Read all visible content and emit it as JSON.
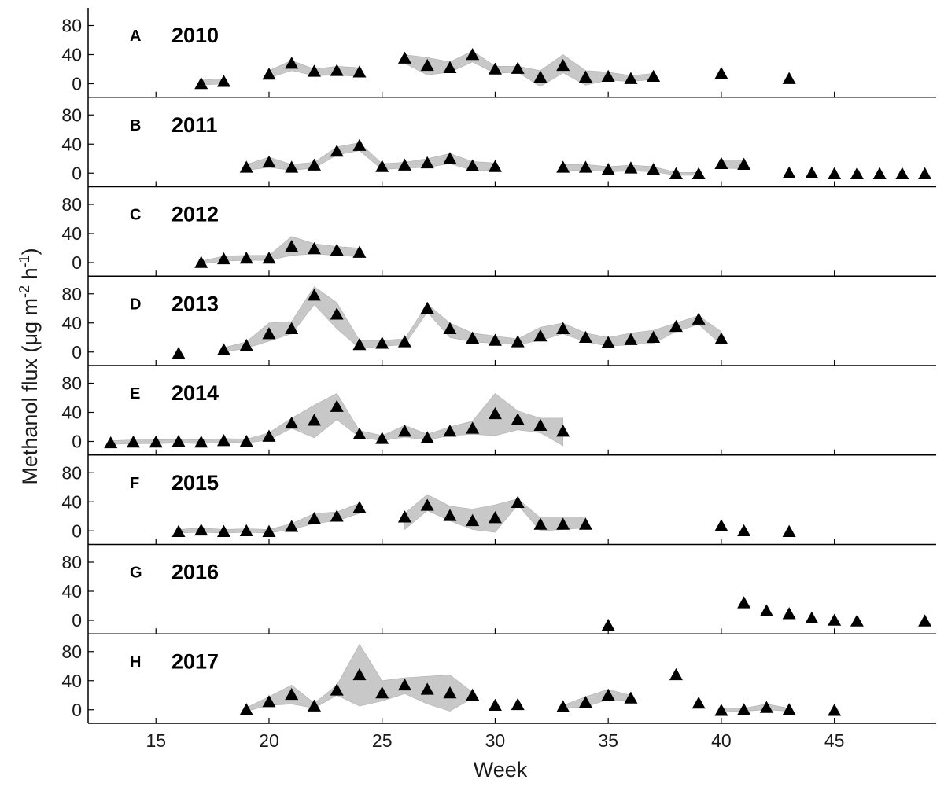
{
  "chart_data": {
    "type": "scatter",
    "xlabel": "Week",
    "ylabel": {
      "main": "Methanol flux (μg m",
      "sup1": "-2",
      "mid": " h",
      "sup2": "-1",
      "end": ")"
    },
    "xlim": [
      12,
      49.5
    ],
    "xticks": [
      15,
      20,
      25,
      30,
      35,
      40,
      45
    ],
    "ylim": [
      -10,
      100
    ],
    "yticks": [
      0,
      40,
      80
    ],
    "colors": {
      "marker": "#000000",
      "band": "#c8c8c8",
      "axis": "#000000"
    },
    "marker": "triangle-up",
    "panels": [
      {
        "letter": "A",
        "year": "2010",
        "x": [
          17,
          18,
          20,
          21,
          22,
          23,
          24,
          26,
          27,
          28,
          29,
          30,
          31,
          32,
          33,
          34,
          35,
          36,
          37,
          40,
          43
        ],
        "y": [
          0,
          3,
          13,
          28,
          17,
          18,
          16,
          35,
          25,
          22,
          40,
          20,
          21,
          9,
          25,
          9,
          10,
          7,
          10,
          14,
          7
        ],
        "segments": [
          {
            "x": [
              17,
              18
            ],
            "lo": [
              -2,
              0
            ],
            "hi": [
              5,
              7
            ]
          },
          {
            "x": [
              20,
              21,
              22,
              23,
              24
            ],
            "lo": [
              8,
              18,
              11,
              12,
              10
            ],
            "hi": [
              18,
              32,
              20,
              24,
              22
            ]
          },
          {
            "x": [
              26,
              27,
              28,
              29,
              30,
              31,
              32,
              33,
              34,
              35,
              36,
              37
            ],
            "lo": [
              28,
              12,
              16,
              30,
              14,
              16,
              -4,
              15,
              -2,
              5,
              3,
              6
            ],
            "hi": [
              40,
              36,
              30,
              45,
              24,
              24,
              18,
              40,
              18,
              16,
              11,
              14
            ]
          }
        ]
      },
      {
        "letter": "B",
        "year": "2011",
        "x": [
          19,
          20,
          21,
          22,
          23,
          24,
          25,
          26,
          27,
          28,
          29,
          30,
          33,
          34,
          35,
          36,
          37,
          38,
          39,
          40,
          41,
          43,
          44,
          45,
          46,
          47,
          48,
          49
        ],
        "y": [
          8,
          15,
          8,
          11,
          30,
          38,
          9,
          11,
          14,
          20,
          10,
          9,
          8,
          8,
          5,
          7,
          5,
          -1,
          -1,
          13,
          12,
          0,
          0,
          -1,
          -1,
          -1,
          -1,
          -1
        ],
        "segments": [
          {
            "x": [
              19,
              20,
              21,
              22,
              23,
              24,
              25,
              26,
              27,
              28,
              29,
              30
            ],
            "lo": [
              4,
              8,
              4,
              7,
              25,
              31,
              5,
              7,
              8,
              13,
              4,
              4
            ],
            "hi": [
              12,
              22,
              12,
              15,
              36,
              42,
              13,
              15,
              20,
              27,
              16,
              14
            ]
          },
          {
            "x": [
              33,
              34,
              35,
              36,
              37,
              38,
              39
            ],
            "lo": [
              4,
              4,
              2,
              3,
              2,
              -3,
              -3
            ],
            "hi": [
              12,
              12,
              9,
              11,
              9,
              1,
              1
            ]
          },
          {
            "x": [
              40,
              41
            ],
            "lo": [
              7,
              6
            ],
            "hi": [
              18,
              18
            ]
          }
        ]
      },
      {
        "letter": "C",
        "year": "2012",
        "x": [
          17,
          18,
          19,
          20,
          21,
          22,
          23,
          24
        ],
        "y": [
          0,
          5,
          6,
          6,
          22,
          19,
          17,
          14
        ],
        "segments": [
          {
            "x": [
              17,
              18,
              19,
              20,
              21,
              22,
              23,
              24
            ],
            "lo": [
              -2,
              2,
              3,
              3,
              10,
              12,
              10,
              8
            ],
            "hi": [
              2,
              9,
              10,
              10,
              36,
              26,
              22,
              20
            ]
          }
        ]
      },
      {
        "letter": "D",
        "year": "2013",
        "x": [
          16,
          18,
          19,
          20,
          21,
          22,
          23,
          24,
          25,
          26,
          27,
          28,
          29,
          30,
          31,
          32,
          33,
          34,
          35,
          36,
          37,
          38,
          39,
          40
        ],
        "y": [
          -2,
          3,
          9,
          25,
          32,
          78,
          52,
          10,
          12,
          14,
          60,
          32,
          19,
          16,
          14,
          22,
          32,
          20,
          13,
          17,
          20,
          35,
          45,
          18
        ],
        "segments": [
          {
            "x": [
              18,
              19,
              20,
              21,
              22,
              23,
              24,
              25,
              26,
              27,
              28,
              29,
              30,
              31,
              32,
              33,
              34,
              35,
              36,
              37,
              38,
              39,
              40
            ],
            "lo": [
              0,
              5,
              15,
              25,
              65,
              32,
              5,
              8,
              10,
              55,
              20,
              14,
              12,
              10,
              16,
              25,
              14,
              8,
              10,
              12,
              28,
              38,
              10
            ],
            "hi": [
              6,
              14,
              40,
              42,
              90,
              68,
              16,
              16,
              18,
              66,
              40,
              26,
              22,
              18,
              34,
              40,
              26,
              20,
              26,
              30,
              40,
              50,
              28
            ]
          }
        ]
      },
      {
        "letter": "E",
        "year": "2014",
        "x": [
          13,
          14,
          15,
          16,
          17,
          18,
          19,
          20,
          21,
          22,
          23,
          24,
          25,
          26,
          27,
          28,
          29,
          30,
          31,
          32,
          33
        ],
        "y": [
          -2,
          -1,
          -1,
          0,
          -1,
          1,
          0,
          7,
          25,
          29,
          48,
          10,
          4,
          14,
          5,
          14,
          18,
          38,
          30,
          22,
          14
        ],
        "segments": [
          {
            "x": [
              13,
              14,
              15,
              16,
              17,
              18,
              19,
              20,
              21,
              22,
              23,
              24,
              25,
              26,
              27,
              28,
              29,
              30,
              31,
              32,
              33
            ],
            "lo": [
              -4,
              -3,
              -3,
              -2,
              -3,
              -1,
              -2,
              2,
              18,
              5,
              30,
              6,
              1,
              6,
              2,
              8,
              10,
              8,
              16,
              12,
              -6
            ],
            "hi": [
              1,
              2,
              2,
              3,
              2,
              4,
              3,
              12,
              32,
              50,
              66,
              15,
              8,
              22,
              10,
              20,
              28,
              66,
              42,
              32,
              32
            ]
          }
        ]
      },
      {
        "letter": "F",
        "year": "2015",
        "x": [
          16,
          17,
          18,
          19,
          20,
          21,
          22,
          23,
          24,
          26,
          27,
          28,
          29,
          30,
          31,
          32,
          33,
          34,
          40,
          41,
          43
        ],
        "y": [
          -1,
          1,
          -1,
          0,
          -1,
          6,
          17,
          20,
          32,
          19,
          35,
          21,
          14,
          18,
          39,
          9,
          9,
          9,
          7,
          0,
          -1
        ],
        "segments": [
          {
            "x": [
              16,
              17,
              18,
              19,
              20,
              21,
              22,
              23,
              24
            ],
            "lo": [
              -3,
              -2,
              -3,
              -2,
              -3,
              2,
              10,
              14,
              24
            ],
            "hi": [
              2,
              4,
              2,
              3,
              2,
              10,
              24,
              26,
              38
            ]
          },
          {
            "x": [
              26,
              27,
              28,
              29,
              30,
              31,
              32,
              33,
              34
            ],
            "lo": [
              2,
              28,
              14,
              2,
              -2,
              36,
              0,
              2,
              4
            ],
            "hi": [
              24,
              50,
              34,
              30,
              36,
              44,
              18,
              18,
              18
            ]
          }
        ]
      },
      {
        "letter": "G",
        "year": "2016",
        "x": [
          35,
          41,
          42,
          43,
          44,
          45,
          46,
          49
        ],
        "y": [
          -7,
          24,
          13,
          9,
          3,
          0,
          -1,
          -1
        ],
        "segments": []
      },
      {
        "letter": "H",
        "year": "2017",
        "x": [
          19,
          20,
          21,
          22,
          23,
          24,
          25,
          26,
          27,
          28,
          29,
          30,
          31,
          33,
          34,
          35,
          36,
          38,
          39,
          40,
          41,
          42,
          43,
          45
        ],
        "y": [
          0,
          11,
          21,
          5,
          27,
          48,
          23,
          34,
          28,
          23,
          20,
          6,
          7,
          4,
          10,
          20,
          16,
          48,
          9,
          -1,
          0,
          3,
          0,
          -1
        ],
        "segments": [
          {
            "x": [
              19,
              20,
              21,
              22,
              23,
              24,
              25,
              26,
              27,
              28,
              29
            ],
            "lo": [
              -2,
              6,
              8,
              2,
              20,
              5,
              12,
              22,
              8,
              -2,
              16
            ],
            "hi": [
              3,
              18,
              34,
              9,
              34,
              90,
              40,
              44,
              46,
              48,
              24
            ]
          },
          {
            "x": [
              33,
              34,
              35,
              36
            ],
            "lo": [
              2,
              4,
              14,
              12
            ],
            "hi": [
              6,
              18,
              28,
              20
            ]
          },
          {
            "x": [
              40,
              41,
              42,
              43
            ],
            "lo": [
              -3,
              -2,
              0,
              -2
            ],
            "hi": [
              2,
              2,
              8,
              2
            ]
          }
        ]
      }
    ]
  }
}
